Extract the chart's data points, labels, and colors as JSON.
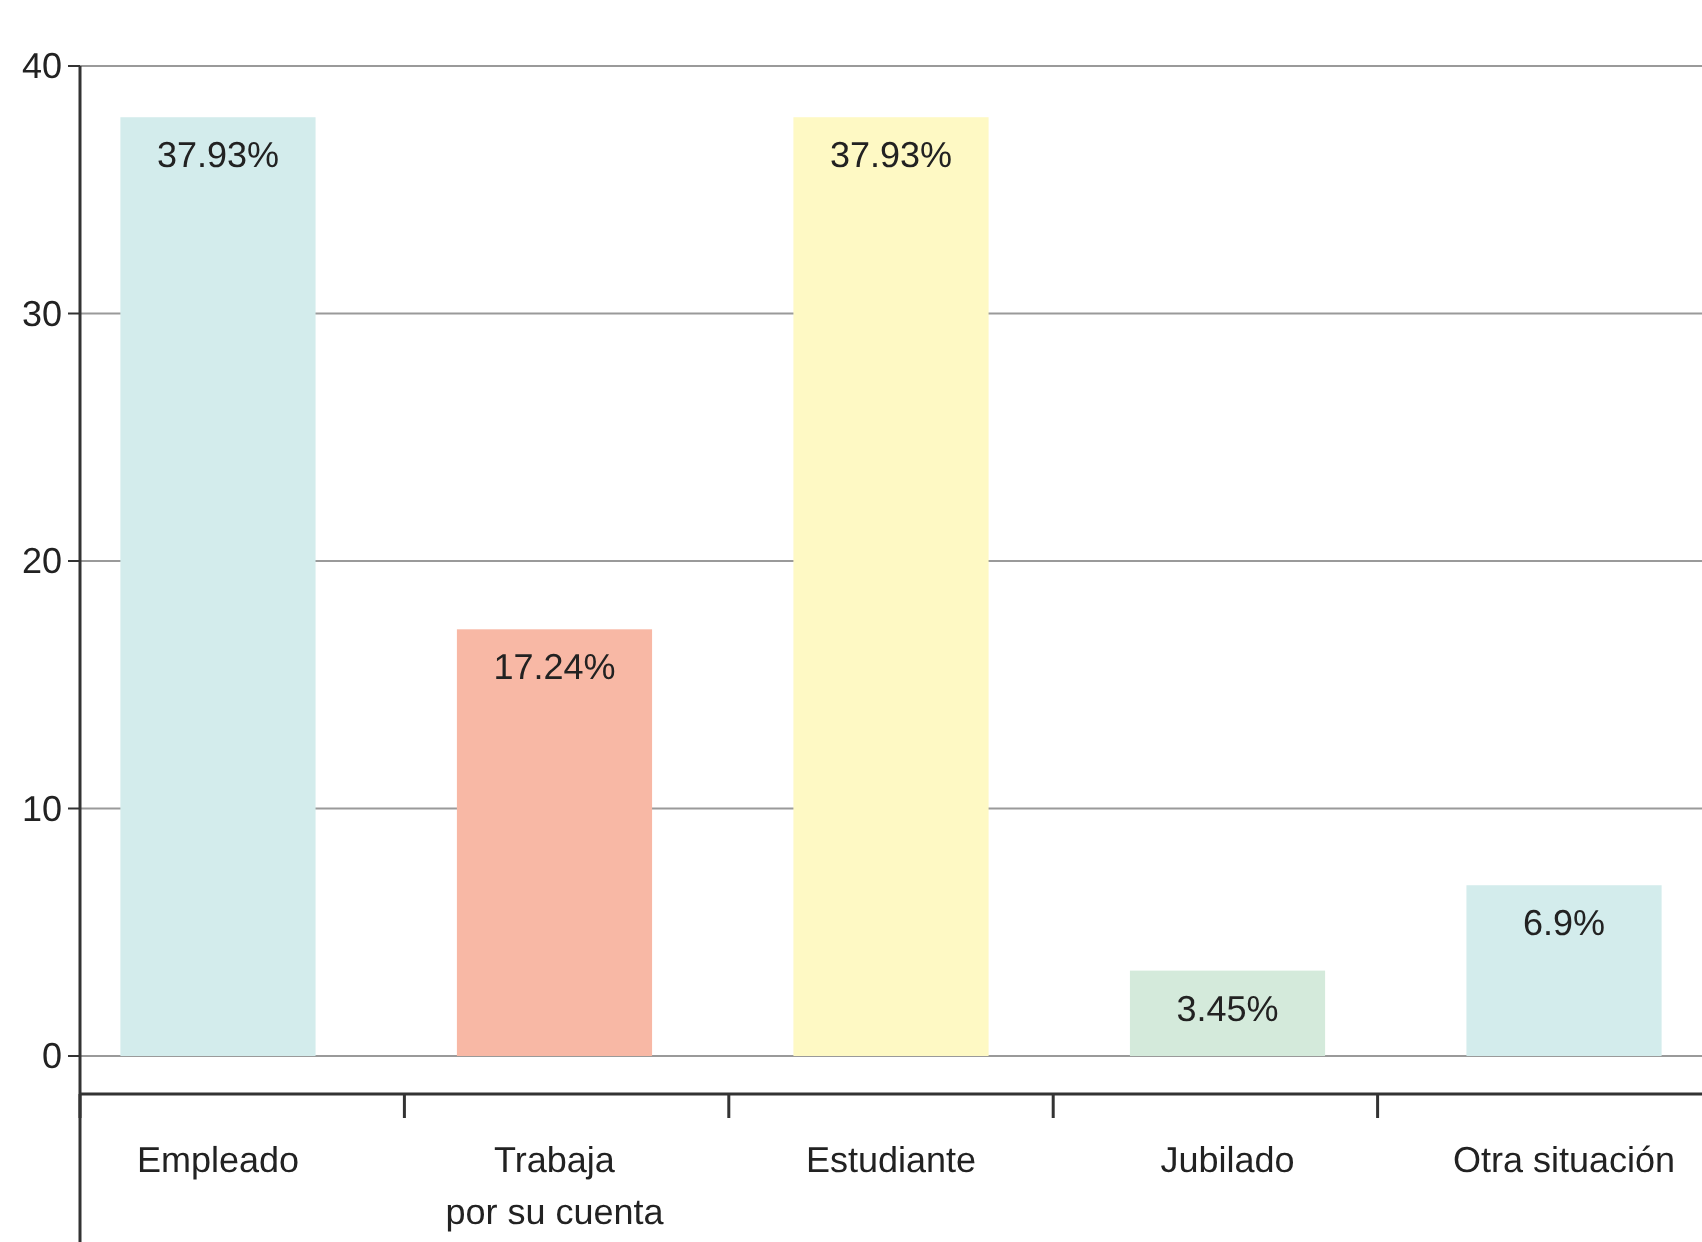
{
  "chart_data": {
    "type": "bar",
    "categories": [
      "Empleado",
      "Trabaja\npor su cuenta",
      "Estudiante",
      "Jubilado",
      "Otra situación"
    ],
    "values": [
      37.93,
      17.24,
      37.93,
      3.45,
      6.9
    ],
    "colors": [
      "#d3ecec",
      "#f8b8a5",
      "#fef9c4",
      "#d4eadb",
      "#d3ecec"
    ],
    "value_labels": [
      "37.93%",
      "17.24%",
      "37.93%",
      "3.45%",
      "6.9%"
    ],
    "ylim": [
      0,
      40
    ],
    "yticks": [
      0,
      10,
      20,
      30,
      40
    ],
    "grid": "y"
  }
}
